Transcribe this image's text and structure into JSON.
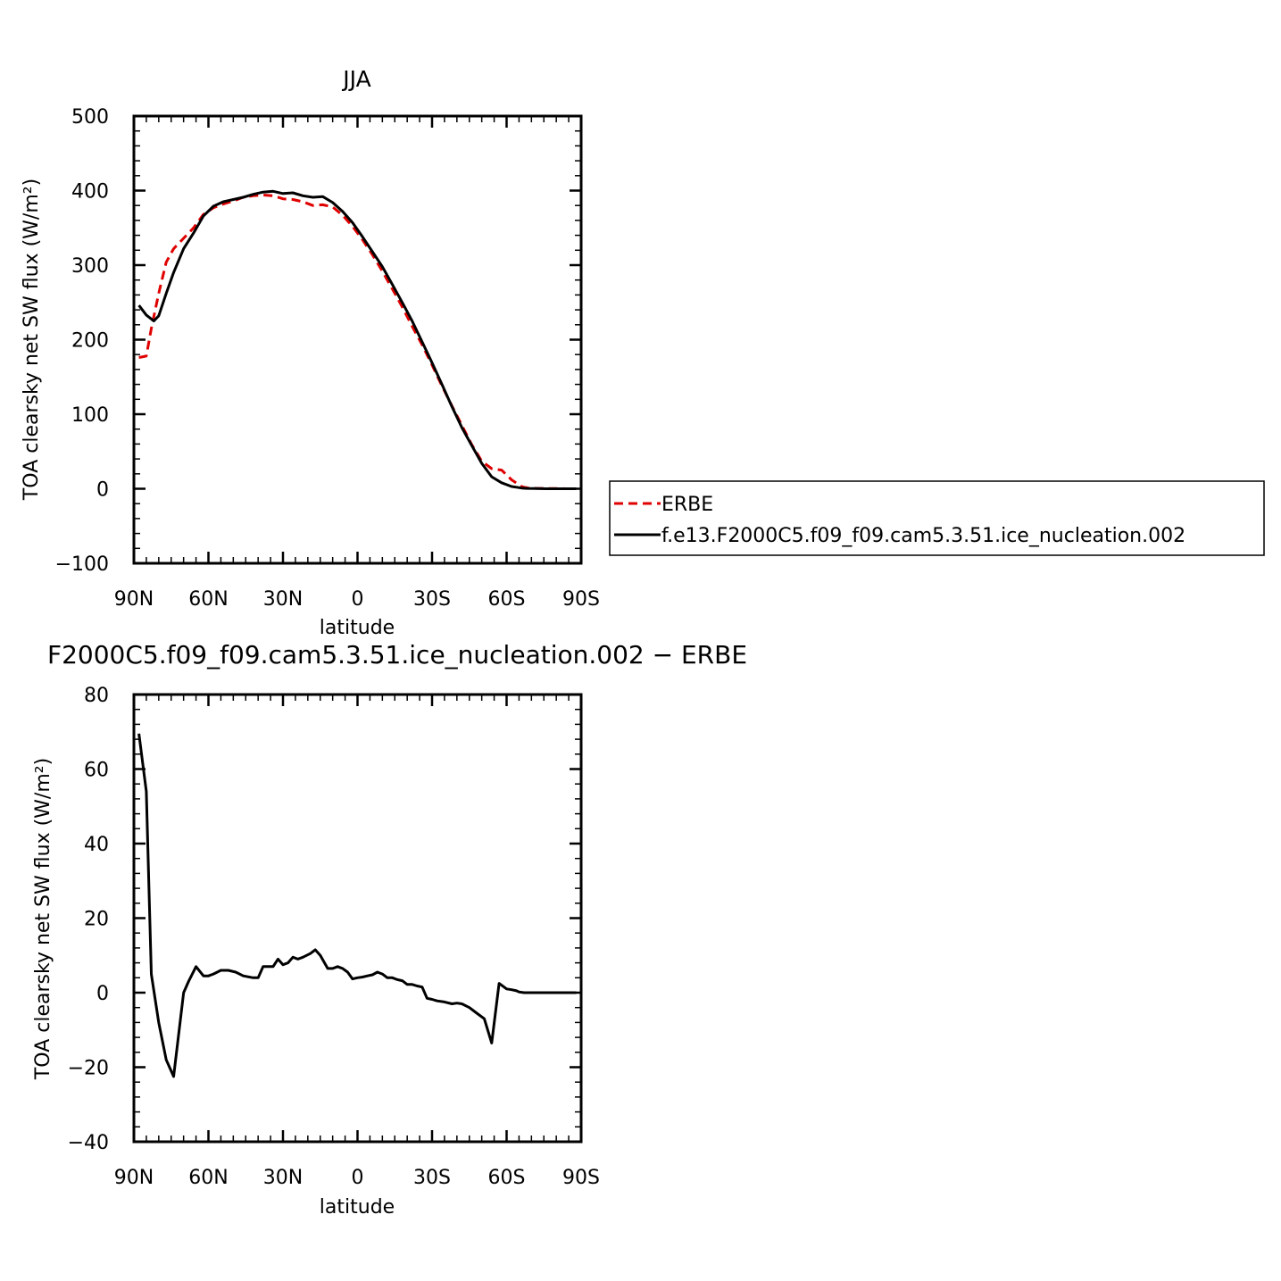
{
  "chart_data": [
    {
      "type": "line",
      "title": "JJA",
      "xlabel": "latitude",
      "ylabel": "TOA clearsky net SW flux (W/m²)",
      "xlim": [
        90,
        -90
      ],
      "ylim": [
        -100,
        500
      ],
      "x_tick_values": [
        90,
        60,
        30,
        0,
        -30,
        -60,
        -90
      ],
      "x_tick_labels": [
        "90N",
        "60N",
        "30N",
        "0",
        "30S",
        "60S",
        "90S"
      ],
      "y_tick_values": [
        -100,
        0,
        100,
        200,
        300,
        400,
        500
      ],
      "y_tick_labels": [
        "−100",
        "0",
        "100",
        "200",
        "300",
        "400",
        "500"
      ],
      "legend_position": "right",
      "series": [
        {
          "name": "ERBE",
          "color": "#e00000",
          "dash": "dashed",
          "x": [
            88,
            85,
            83,
            80,
            77,
            74,
            70,
            66,
            62,
            58,
            54,
            50,
            46,
            42,
            38,
            34,
            30,
            26,
            22,
            18,
            14,
            10,
            6,
            2,
            -2,
            -6,
            -10,
            -14,
            -18,
            -22,
            -26,
            -30,
            -34,
            -38,
            -42,
            -46,
            -50,
            -54,
            -58,
            -62,
            -66,
            -67,
            -69,
            -72,
            -76,
            -80,
            -84,
            -88
          ],
          "y": [
            176,
            178,
            215,
            262,
            304,
            322,
            336,
            350,
            368,
            377,
            382,
            386,
            391,
            393,
            394,
            393,
            389,
            388,
            385,
            380,
            381,
            378,
            367,
            352,
            334,
            314,
            292,
            268,
            244,
            218,
            193,
            166,
            138,
            111,
            85,
            59,
            37,
            27,
            25,
            12,
            3,
            2,
            1,
            0.5,
            0.3,
            0.2,
            0,
            0
          ]
        },
        {
          "name": "f.e13.F2000C5.f09_f09.cam5.3.51.ice_nucleation.002",
          "color": "#000000",
          "dash": "solid",
          "x": [
            88,
            85,
            82,
            80,
            77,
            74,
            70,
            66,
            62,
            58,
            54,
            50,
            46,
            42,
            38,
            34,
            30,
            26,
            22,
            18,
            14,
            10,
            6,
            2,
            -2,
            -6,
            -10,
            -14,
            -18,
            -22,
            -26,
            -30,
            -34,
            -38,
            -42,
            -46,
            -50,
            -54,
            -58,
            -62,
            -64,
            -66,
            -68,
            -72,
            -76,
            -80,
            -84,
            -88
          ],
          "y": [
            246,
            233,
            225,
            232,
            262,
            290,
            322,
            343,
            366,
            379,
            385,
            388,
            391,
            395,
            398,
            399,
            396,
            397,
            393,
            391,
            392,
            384,
            372,
            357,
            338,
            318,
            298,
            274,
            250,
            225,
            197,
            169,
            140,
            110,
            82,
            58,
            34,
            16,
            8,
            3,
            2,
            1,
            0.5,
            0.2,
            0,
            0,
            0,
            0
          ]
        }
      ]
    },
    {
      "type": "line",
      "title": "F2000C5.f09_f09.cam5.3.51.ice_nucleation.002 − ERBE",
      "xlabel": "latitude",
      "ylabel": "TOA clearsky net SW flux (W/m²)",
      "xlim": [
        90,
        -90
      ],
      "ylim": [
        -40,
        80
      ],
      "x_tick_values": [
        90,
        60,
        30,
        0,
        -30,
        -60,
        -90
      ],
      "x_tick_labels": [
        "90N",
        "60N",
        "30N",
        "0",
        "30S",
        "60S",
        "90S"
      ],
      "y_tick_values": [
        -40,
        -20,
        0,
        20,
        40,
        60,
        80
      ],
      "y_tick_labels": [
        "−40",
        "−20",
        "0",
        "20",
        "40",
        "60",
        "80"
      ],
      "series": [
        {
          "color": "#000000",
          "dash": "solid",
          "x": [
            88,
            85,
            83,
            80,
            77,
            74,
            70,
            68,
            65,
            62,
            60,
            58,
            55,
            52,
            49,
            46,
            42,
            40,
            38,
            36,
            34,
            32,
            30,
            28,
            26,
            24,
            22,
            19,
            17,
            15,
            12,
            10,
            8,
            6,
            4,
            2,
            0,
            -2,
            -4,
            -6,
            -8,
            -10,
            -12,
            -14,
            -16,
            -18,
            -20,
            -22,
            -24,
            -26,
            -28,
            -30,
            -32,
            -35,
            -38,
            -40,
            -42,
            -45,
            -48,
            -51,
            -54,
            -57,
            -60,
            -62,
            -64,
            -65,
            -67,
            -69,
            -71,
            -74,
            -77,
            -80,
            -83,
            -86,
            -88
          ],
          "y": [
            69.5,
            54,
            5,
            -8,
            -18,
            -22.5,
            0,
            3,
            7,
            4.5,
            4.5,
            5,
            6,
            6,
            5.5,
            4.5,
            4,
            4,
            7,
            7,
            7,
            9,
            7.5,
            8,
            9.5,
            9,
            9.5,
            10.5,
            11.5,
            10,
            6.5,
            6.5,
            7,
            6.5,
            5.5,
            3.7,
            4,
            4.2,
            4.5,
            4.8,
            5.5,
            5,
            4,
            4,
            3.5,
            3.2,
            2.2,
            2.2,
            1.8,
            1.5,
            -1.5,
            -1.8,
            -2.2,
            -2.5,
            -3,
            -2.8,
            -3,
            -4,
            -5.5,
            -7,
            -13.5,
            2.5,
            1,
            0.8,
            0.5,
            0.2,
            0,
            0,
            0,
            0,
            0,
            0,
            0,
            0,
            0
          ]
        }
      ]
    }
  ]
}
